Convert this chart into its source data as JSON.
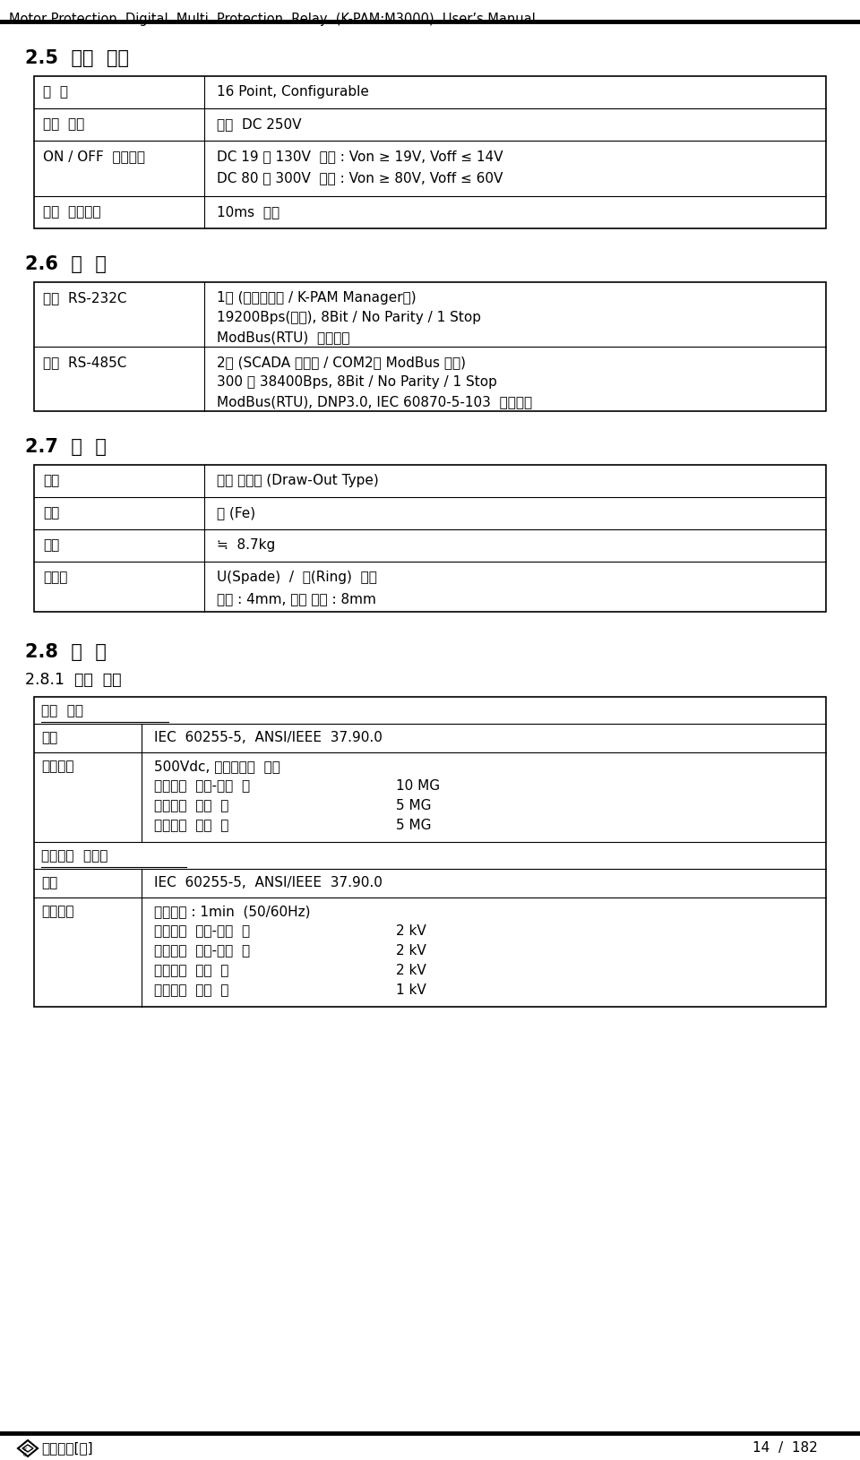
{
  "header_text": "Motor Protection  Digital  Multi  Protection  Relay  (K-PAM:M3000)  User’s Manual",
  "footer_page": "14  /  182",
  "bg_color": "#ffffff",
  "section_25_title": "2.5  입력  접점",
  "section_26_title": "2.6  통  신",
  "section_27_title": "2.7  외  함",
  "section_28_title": "2.8  시  험",
  "section_281_title": "2.8.1  절연  시험",
  "table_25_rows": [
    [
      "개  수",
      "16 Point, Configurable"
    ],
    [
      "입력  전압",
      "최대  DC 250V"
    ],
    [
      "ON / OFF  인식전압",
      "DC 19 ～ 130V  전원 : Von ≥ 19V, Voff ≤ 14V\nDC 80 ～ 300V  전원 : Von ≥ 80V, Voff ≤ 60V"
    ],
    [
      "접점  반영시간",
      "10ms  이하"
    ]
  ],
  "table_26_rows": [
    [
      "전면  RS-232C",
      "1개 (유지보수용 / K-PAM Manager용)\n19200Bps(고정), 8Bit / No Parity / 1 Stop\nModBus(RTU)  프로토콜"
    ],
    [
      "후면  RS-485C",
      "2개 (SCADA 통신용 / COM2는 ModBus 전용)\n300 ～ 38400Bps, 8Bit / No Parity / 1 Stop\nModBus(RTU), DNP3.0, IEC 60870-5-103  프로토콜"
    ]
  ],
  "table_27_rows": [
    [
      "구조",
      "매입 인출형 (Draw-Out Type)"
    ],
    [
      "재질",
      "철 (Fe)"
    ],
    [
      "무게",
      "≒  8.7kg"
    ],
    [
      "단자대",
      "U(Spade)  /  링(Ring)  러그\n내경 : 4mm, 최대 외경 : 8mm"
    ]
  ],
  "table_281_data": [
    {
      "type": "section_header",
      "text": "절연  저항"
    },
    {
      "type": "row",
      "label": "규격",
      "value": "IEC  60255-5,  ANSI/IEEE  37.90.0"
    },
    {
      "type": "row",
      "label": "상세내용",
      "value": "500Vdc, 절연저항계  측정\n전기회로  일괄-대지  간\t10 MG\n전기회로  상호  간\t5 MG\n접점회로  단자  간\t5 MG"
    },
    {
      "type": "section_header",
      "text": "상용주파  내전압"
    },
    {
      "type": "row",
      "label": "규격",
      "value": "IEC  60255-5,  ANSI/IEEE  37.90.0"
    },
    {
      "type": "row",
      "label": "상세내용",
      "value": "인가시간 : 1min  (50/60Hz)\n전기회로  일괄-대지  간\t2 kV\n통신회로  일괄-대지  간\t2 kV\n전기회로  상호  간\t2 kV\n접점회로  단자  간\t1 kV"
    }
  ]
}
